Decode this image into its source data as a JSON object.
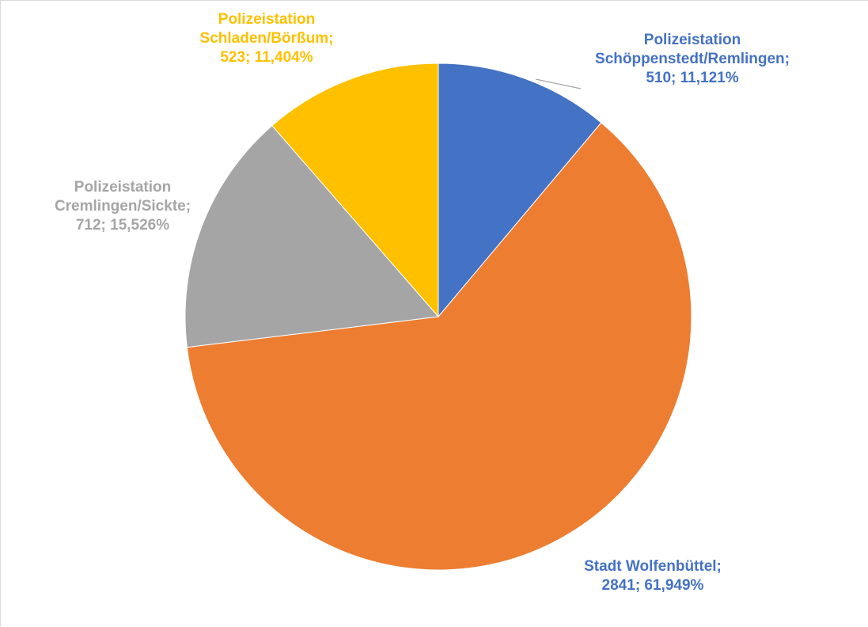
{
  "chart_data": {
    "type": "pie",
    "slices": [
      {
        "label_lines": [
          "Polizeistation",
          "Schöppenstedt/Remlingen;",
          "510; 11,121%"
        ],
        "value": 510,
        "percent": 11.121,
        "color": "#4472C4"
      },
      {
        "label_lines": [
          "Stadt Wolfenbüttel;",
          "2841; 61,949%"
        ],
        "value": 2841,
        "percent": 61.949,
        "color": "#ED7D31",
        "label_color": "#4472C4"
      },
      {
        "label_lines": [
          "Polizeistation",
          "Cremlingen/Sickte;",
          "712; 15,526%"
        ],
        "value": 712,
        "percent": 15.526,
        "color": "#A5A5A5"
      },
      {
        "label_lines": [
          "Polizeistation",
          "Schladen/Börßum;",
          "523; 11,404%"
        ],
        "value": 523,
        "percent": 11.404,
        "color": "#FFC000"
      }
    ],
    "start": "12 o'clock",
    "direction": "clockwise",
    "legend": "none"
  }
}
